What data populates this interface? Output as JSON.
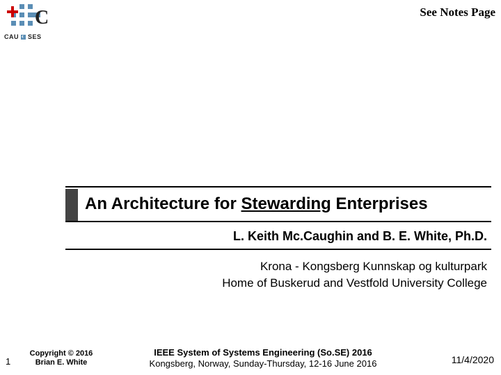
{
  "header": {
    "notes_link": "See Notes Page",
    "logo_sub_left": "CAU",
    "logo_sub_right": "SES"
  },
  "title": {
    "pre": "An Architecture for ",
    "emph": "Stewarding",
    "post": " Enterprises"
  },
  "authors": "L. Keith Mc.Caughin and B. E. White, Ph.D.",
  "venue": {
    "line1": "Krona - Kongsberg Kunnskap og kulturpark",
    "line2": "Home of Buskerud and Vestfold University College"
  },
  "footer": {
    "page": "1",
    "copyright_l1": "Copyright © 2016",
    "copyright_l2": "Brian E. White",
    "conference_l1": "IEEE System of Systems Engineering (So.SE) 2016",
    "conference_l2": "Kongsberg, Norway, Sunday-Thursday, 12-16 June 2016",
    "date": "11/4/2020"
  }
}
